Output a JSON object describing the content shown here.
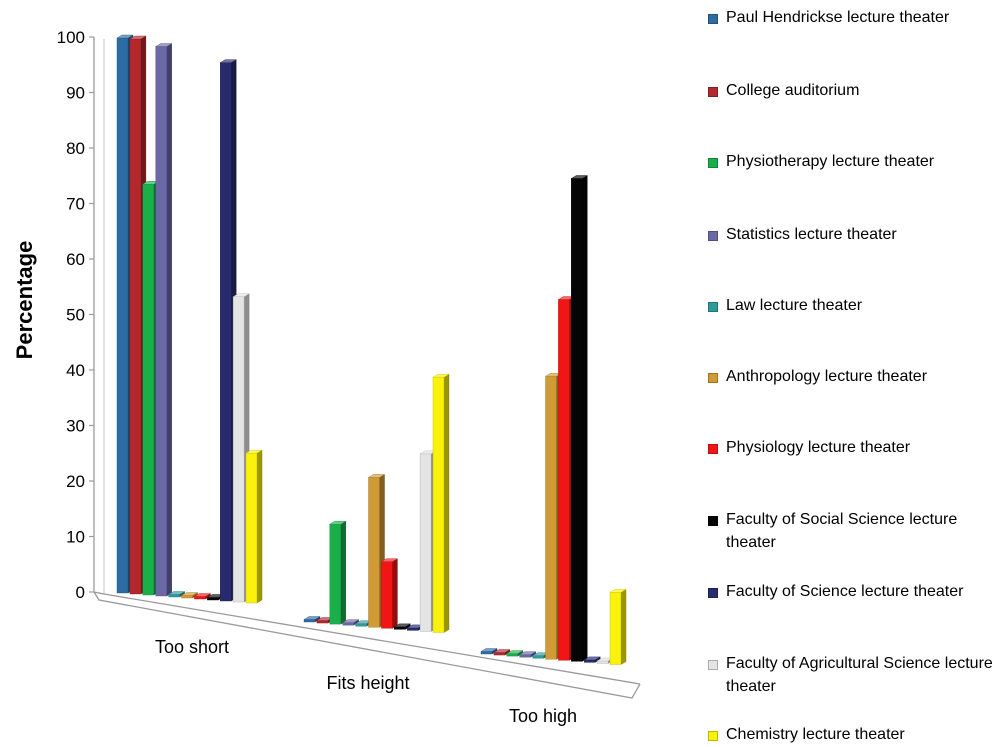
{
  "chart_data": {
    "type": "bar",
    "categories": [
      "Too short",
      "Fits height",
      "Too high"
    ],
    "ylabel": "Percentage",
    "xlabel": "",
    "ylim": [
      0,
      100
    ],
    "yticks": [
      0,
      10,
      20,
      30,
      40,
      50,
      60,
      70,
      80,
      90,
      100
    ],
    "grid": false,
    "legend_position": "right",
    "series": [
      {
        "name": "Paul Hendrickse lecture theater",
        "color": "#2E6DA4",
        "values": [
          100,
          0,
          0
        ]
      },
      {
        "name": "College auditorium",
        "color": "#B3282D",
        "values": [
          100,
          0,
          0
        ]
      },
      {
        "name": "Physiotherapy lecture theater",
        "color": "#19B04B",
        "values": [
          74,
          18,
          0
        ]
      },
      {
        "name": "Statistics lecture theater",
        "color": "#6B68A8",
        "values": [
          99,
          0,
          0
        ]
      },
      {
        "name": "Law lecture theater",
        "color": "#2E9A9C",
        "values": [
          0,
          0,
          0
        ]
      },
      {
        "name": "Anthropology lecture theater",
        "color": "#D09A35",
        "values": [
          0,
          27,
          51
        ]
      },
      {
        "name": "Physiology lecture theater",
        "color": "#F21515",
        "values": [
          0,
          12,
          65
        ]
      },
      {
        "name": "Faculty of Social Science lecture theater",
        "color": "#050505",
        "values": [
          0,
          0,
          87
        ]
      },
      {
        "name": "Faculty of Science lecture theater",
        "color": "#272B6E",
        "values": [
          97,
          0,
          0
        ]
      },
      {
        "name": "Faculty of Agricultural Science lecture theater",
        "color": "#E4E4E4",
        "values": [
          55,
          32,
          0
        ]
      },
      {
        "name": "Chemistry lecture theater",
        "color": "#FAF20A",
        "values": [
          27,
          46,
          13
        ]
      }
    ]
  }
}
